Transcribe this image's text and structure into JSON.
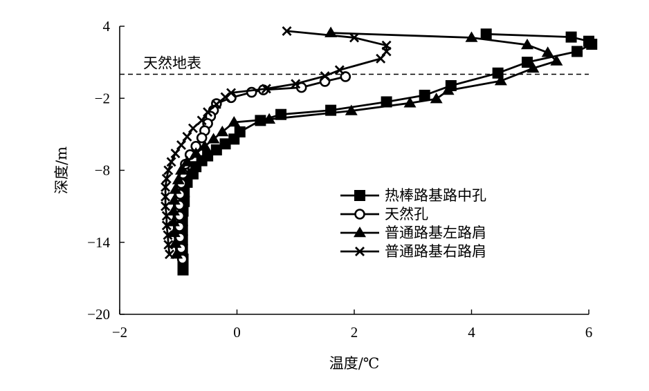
{
  "chart_data": {
    "type": "line",
    "xlabel": "温度/℃",
    "ylabel": "深度/m",
    "xlim": [
      -2,
      6
    ],
    "ylim": [
      -20,
      4
    ],
    "xticks": [
      "−2",
      "0",
      "2",
      "4",
      "6"
    ],
    "yticks": [
      "4",
      "−2",
      "−8",
      "−14",
      "−20"
    ],
    "xtick_values": [
      -2,
      0,
      2,
      4,
      6
    ],
    "ytick_values": [
      4,
      -2,
      -8,
      -14,
      -20
    ],
    "grid": false,
    "legend_position": "center-right",
    "annotation": {
      "text": "天然地表",
      "y": 0
    },
    "series": [
      {
        "name": "热棒路基路中孔",
        "marker": "square",
        "points": [
          [
            4.25,
            3.35
          ],
          [
            5.7,
            3.1
          ],
          [
            6.0,
            2.75
          ],
          [
            6.05,
            2.5
          ],
          [
            5.8,
            1.9
          ],
          [
            4.95,
            1.0
          ],
          [
            4.45,
            0.1
          ],
          [
            3.65,
            -0.95
          ],
          [
            3.2,
            -1.75
          ],
          [
            2.55,
            -2.3
          ],
          [
            1.6,
            -3.0
          ],
          [
            0.75,
            -3.35
          ],
          [
            0.4,
            -3.85
          ],
          [
            0.05,
            -4.8
          ],
          [
            -0.05,
            -5.4
          ],
          [
            -0.2,
            -5.8
          ],
          [
            -0.35,
            -6.3
          ],
          [
            -0.5,
            -6.8
          ],
          [
            -0.6,
            -7.2
          ],
          [
            -0.7,
            -7.7
          ],
          [
            -0.75,
            -8.3
          ],
          [
            -0.85,
            -9.0
          ],
          [
            -0.9,
            -9.8
          ],
          [
            -0.9,
            -10.6
          ],
          [
            -0.92,
            -11.4
          ],
          [
            -0.93,
            -12.2
          ],
          [
            -0.93,
            -13.0
          ],
          [
            -0.93,
            -13.8
          ],
          [
            -0.93,
            -14.6
          ],
          [
            -0.92,
            -15.4
          ],
          [
            -0.92,
            -16.3
          ]
        ]
      },
      {
        "name": "天然孔",
        "marker": "circle",
        "points": [
          [
            1.85,
            -0.2
          ],
          [
            1.5,
            -0.6
          ],
          [
            1.1,
            -1.1
          ],
          [
            0.45,
            -1.3
          ],
          [
            0.25,
            -1.5
          ],
          [
            -0.1,
            -1.95
          ],
          [
            -0.35,
            -2.45
          ],
          [
            -0.4,
            -3.0
          ],
          [
            -0.45,
            -3.5
          ],
          [
            -0.5,
            -4.1
          ],
          [
            -0.55,
            -4.7
          ],
          [
            -0.6,
            -5.3
          ],
          [
            -0.7,
            -6.0
          ],
          [
            -0.8,
            -6.7
          ],
          [
            -0.88,
            -7.5
          ],
          [
            -0.92,
            -8.3
          ],
          [
            -0.95,
            -9.1
          ],
          [
            -0.97,
            -10.0
          ],
          [
            -0.98,
            -10.9
          ],
          [
            -0.98,
            -11.8
          ],
          [
            -0.98,
            -12.7
          ],
          [
            -0.97,
            -13.6
          ],
          [
            -0.95,
            -14.5
          ],
          [
            -0.93,
            -15.4
          ]
        ]
      },
      {
        "name": "普通路基左路肩",
        "marker": "triangle",
        "points": [
          [
            1.6,
            3.45
          ],
          [
            4.0,
            3.05
          ],
          [
            4.95,
            2.45
          ],
          [
            5.3,
            1.8
          ],
          [
            5.45,
            1.1
          ],
          [
            5.05,
            0.5
          ],
          [
            4.5,
            -0.55
          ],
          [
            3.6,
            -1.35
          ],
          [
            3.4,
            -2.05
          ],
          [
            2.95,
            -2.4
          ],
          [
            1.95,
            -3.05
          ],
          [
            0.55,
            -3.75
          ],
          [
            -0.05,
            -4.0
          ],
          [
            -0.25,
            -4.8
          ],
          [
            -0.4,
            -5.4
          ],
          [
            -0.55,
            -6.0
          ],
          [
            -0.7,
            -6.6
          ],
          [
            -0.85,
            -7.3
          ],
          [
            -0.95,
            -8.0
          ],
          [
            -1.0,
            -8.8
          ],
          [
            -1.05,
            -9.6
          ],
          [
            -1.07,
            -10.5
          ],
          [
            -1.08,
            -11.4
          ],
          [
            -1.08,
            -12.3
          ],
          [
            -1.07,
            -13.2
          ],
          [
            -1.05,
            -14.1
          ],
          [
            -1.03,
            -15.0
          ]
        ]
      },
      {
        "name": "普通路基右路肩",
        "marker": "x",
        "points": [
          [
            0.85,
            3.6
          ],
          [
            2.0,
            3.05
          ],
          [
            2.55,
            2.4
          ],
          [
            2.55,
            1.9
          ],
          [
            2.45,
            1.3
          ],
          [
            1.75,
            0.35
          ],
          [
            1.5,
            -0.15
          ],
          [
            1.0,
            -0.8
          ],
          [
            0.5,
            -1.2
          ],
          [
            -0.1,
            -1.55
          ],
          [
            -0.2,
            -1.9
          ],
          [
            -0.35,
            -2.5
          ],
          [
            -0.5,
            -3.15
          ],
          [
            -0.6,
            -3.85
          ],
          [
            -0.75,
            -4.5
          ],
          [
            -0.85,
            -5.2
          ],
          [
            -0.95,
            -5.9
          ],
          [
            -1.05,
            -6.6
          ],
          [
            -1.12,
            -7.3
          ],
          [
            -1.17,
            -8.0
          ],
          [
            -1.2,
            -8.7
          ],
          [
            -1.22,
            -9.4
          ],
          [
            -1.22,
            -10.2
          ],
          [
            -1.22,
            -11.0
          ],
          [
            -1.2,
            -11.8
          ],
          [
            -1.2,
            -12.6
          ],
          [
            -1.18,
            -13.4
          ],
          [
            -1.17,
            -14.2
          ],
          [
            -1.15,
            -15.0
          ]
        ]
      }
    ]
  }
}
